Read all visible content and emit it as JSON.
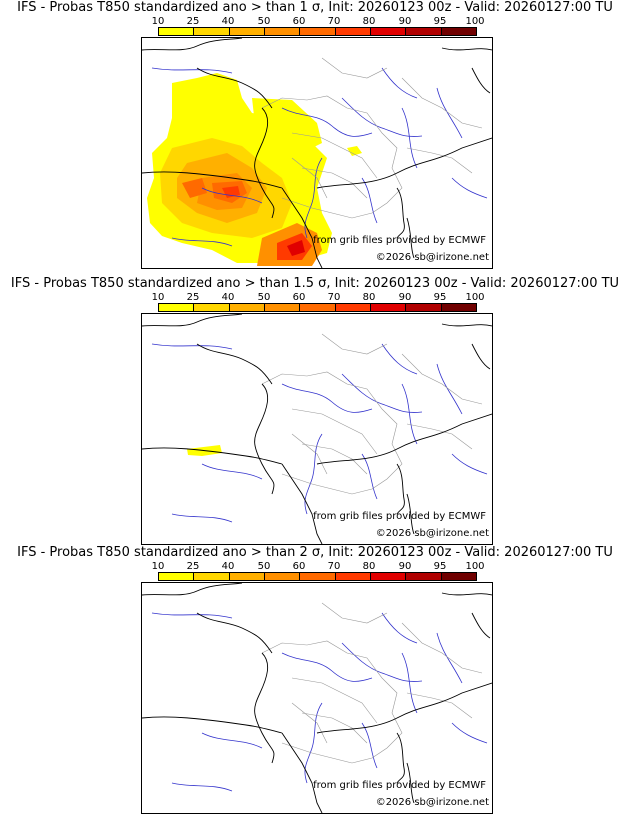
{
  "panels": [
    {
      "title": "IFS - Probas T850  standardized ano > than 1 σ, Init: 20260123 00z - Valid: 20260127:00 TU",
      "source_credit": "from grib files provided by ECMWF",
      "copyright": "©2026 sb@irizone.net",
      "has_anomaly": true
    },
    {
      "title": "IFS - Probas T850  standardized ano > than 1.5 σ, Init: 20260123 00z - Valid: 20260127:00 TU",
      "source_credit": "from grib files provided by ECMWF",
      "copyright": "©2026 sb@irizone.net",
      "has_anomaly": "small"
    },
    {
      "title": "IFS - Probas T850  standardized ano > than 2 σ, Init: 20260123 00z - Valid: 20260127:00 TU",
      "source_credit": "from grib files provided by ECMWF",
      "copyright": "©2026 sb@irizone.net",
      "has_anomaly": false
    }
  ],
  "colorbar": {
    "ticks": [
      "10",
      "25",
      "40",
      "50",
      "60",
      "70",
      "80",
      "90",
      "95",
      "100"
    ],
    "colors": [
      "#ffff00",
      "#ffd700",
      "#ffb000",
      "#ff9000",
      "#ff6a00",
      "#ff3a00",
      "#e00000",
      "#b00000",
      "#700000"
    ]
  },
  "colors": {
    "coastline": "#000000",
    "borders": "#999999",
    "rivers": "#3333cc"
  }
}
